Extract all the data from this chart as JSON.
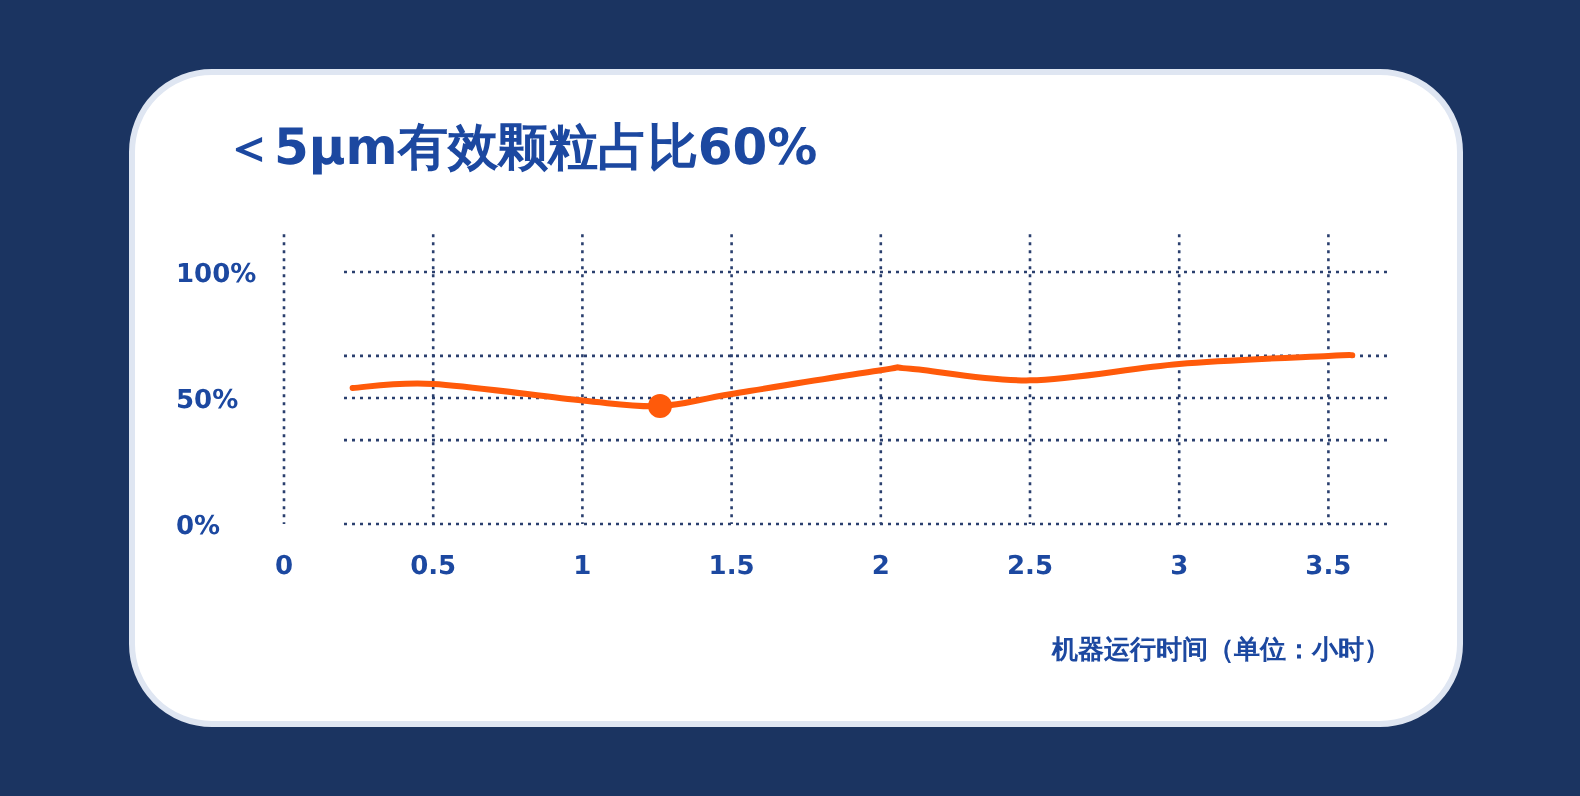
{
  "chart_data": {
    "type": "line",
    "title": "＜5μm有效颗粒占比60%",
    "xlabel": "机器运行时间（单位：小时）",
    "series": [
      {
        "color": "#ff5a0a",
        "x": [
          0.23,
          0.5,
          1.0,
          1.26,
          1.5,
          2.0,
          2.1,
          2.5,
          3.0,
          3.5,
          3.58
        ],
        "values": [
          54,
          55.6,
          49,
          46.8,
          51.6,
          61,
          61.6,
          57,
          63.5,
          66.7,
          67
        ]
      },
      {
        "type": "scatter",
        "color": "#ff5a0a",
        "x": [
          1.26
        ],
        "values": [
          46.8
        ],
        "marker": "circle"
      }
    ],
    "xlim": [
      0,
      3.7
    ],
    "ylim": [
      0,
      115
    ],
    "xticks": [
      0,
      0.5,
      1,
      1.5,
      2,
      2.5,
      3,
      3.5
    ],
    "yticks": [
      {
        "value": 0,
        "label": "0%"
      },
      {
        "value": 33.3,
        "label": null
      },
      {
        "value": 50,
        "label": "50%"
      },
      {
        "value": 66.7,
        "label": null
      },
      {
        "value": 100,
        "label": "100%"
      }
    ],
    "grid": true
  }
}
